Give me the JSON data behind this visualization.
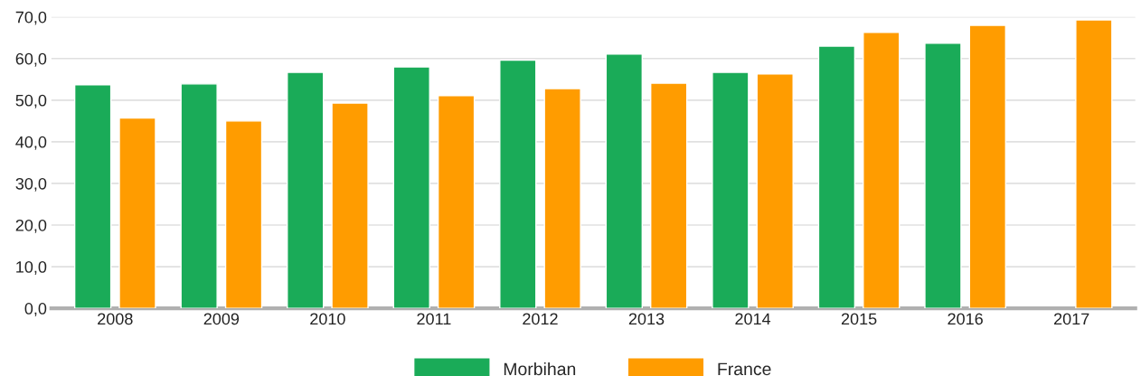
{
  "chart_data": {
    "type": "bar",
    "categories": [
      "2008",
      "2009",
      "2010",
      "2011",
      "2012",
      "2013",
      "2014",
      "2015",
      "2016",
      "2017"
    ],
    "series": [
      {
        "name": "Morbihan",
        "color": "#1aab58",
        "values": [
          53.7,
          53.9,
          56.7,
          58.0,
          59.6,
          61.1,
          56.7,
          63.0,
          63.7,
          null
        ]
      },
      {
        "name": "France",
        "color": "#ff9c00",
        "values": [
          45.7,
          45.0,
          49.3,
          51.1,
          52.8,
          54.1,
          56.3,
          66.3,
          68.0,
          69.3
        ]
      }
    ],
    "ylim": [
      0,
      70
    ],
    "yticks": [
      {
        "value": 0,
        "label": "0,0"
      },
      {
        "value": 10,
        "label": "10,0"
      },
      {
        "value": 20,
        "label": "20,0"
      },
      {
        "value": 30,
        "label": "30,0"
      },
      {
        "value": 40,
        "label": "40,0"
      },
      {
        "value": 50,
        "label": "50,0"
      },
      {
        "value": 60,
        "label": "60,0"
      },
      {
        "value": 70,
        "label": "70,0"
      }
    ],
    "grid": "y",
    "legend": "bottom"
  }
}
